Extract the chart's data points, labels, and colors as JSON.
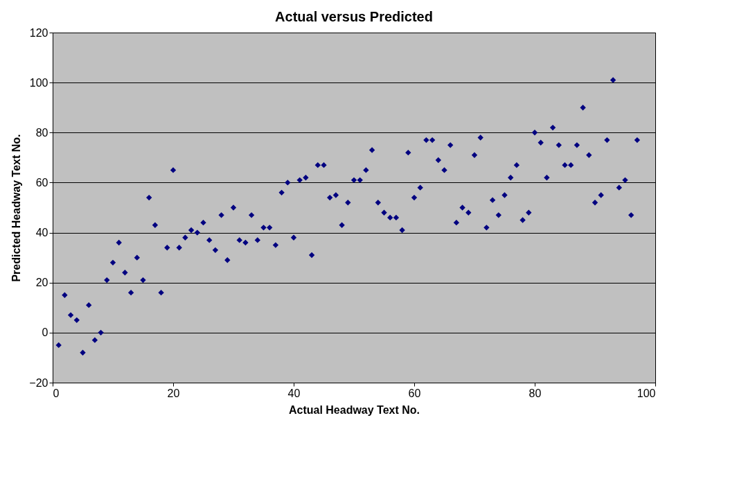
{
  "chart_data": {
    "type": "scatter",
    "title": "Actual versus Predicted",
    "xlabel": "Actual Headway Text No.",
    "ylabel": "Predicted Headway Text No.",
    "x": [
      1,
      2,
      3,
      4,
      5,
      6,
      7,
      8,
      9,
      10,
      11,
      12,
      13,
      14,
      15,
      16,
      17,
      18,
      19,
      20,
      21,
      22,
      23,
      24,
      25,
      26,
      27,
      28,
      29,
      30,
      31,
      32,
      33,
      34,
      35,
      36,
      37,
      38,
      39,
      40,
      41,
      42,
      43,
      44,
      45,
      46,
      47,
      48,
      49,
      50,
      51,
      52,
      53,
      54,
      55,
      56,
      57,
      58,
      59,
      60,
      61,
      62,
      63,
      64,
      65,
      66,
      67,
      68,
      69,
      70,
      71,
      72,
      73,
      74,
      75,
      76,
      77,
      78,
      79,
      80,
      81,
      82,
      83,
      84,
      85,
      86,
      87,
      88,
      89,
      90,
      91,
      92,
      93,
      94,
      95,
      96,
      97
    ],
    "series": [
      {
        "color": "#000080",
        "values": [
          -5,
          15,
          7,
          5,
          -8,
          11,
          -3,
          0,
          21,
          28,
          36,
          24,
          16,
          30,
          21,
          54,
          43,
          16,
          34,
          65,
          34,
          38,
          41,
          40,
          44,
          37,
          33,
          47,
          29,
          50,
          37,
          36,
          47,
          37,
          42,
          42,
          35,
          56,
          60,
          38,
          61,
          62,
          31,
          67,
          67,
          54,
          55,
          43,
          52,
          61,
          61,
          65,
          73,
          52,
          48,
          46,
          46,
          41,
          72,
          54,
          58,
          77,
          77,
          69,
          65,
          75,
          44,
          50,
          48,
          71,
          78,
          42,
          53,
          47,
          55,
          62,
          67,
          45,
          48,
          80,
          76,
          62,
          82,
          75,
          67,
          67,
          75,
          90,
          71,
          52,
          55,
          77,
          101,
          58,
          61,
          47,
          77
        ]
      }
    ],
    "xlim": [
      0,
      100
    ],
    "xticks": [
      0,
      20,
      40,
      60,
      80,
      100
    ],
    "ylim": [
      -20,
      120
    ],
    "yticks": [
      -20,
      0,
      20,
      40,
      60,
      80,
      100,
      120
    ],
    "grid": "y",
    "marker": "diamond",
    "legend": false
  }
}
